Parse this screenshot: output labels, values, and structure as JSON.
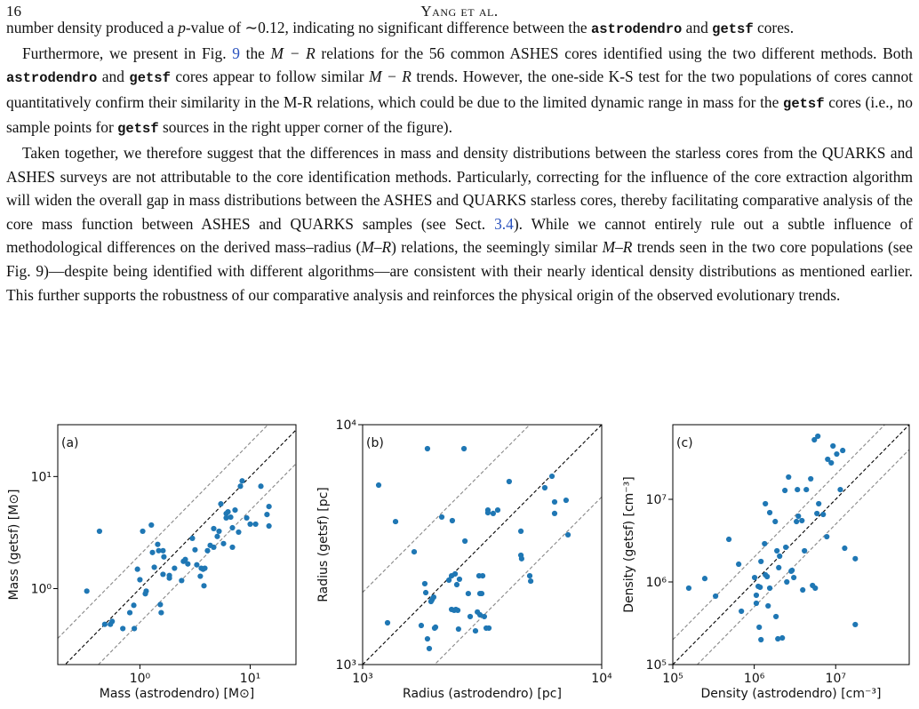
{
  "header": {
    "page": "16",
    "running_title": "Yang et al."
  },
  "paragraphs": [
    [
      "number density produced a ",
      "p",
      "-value of ∼0.12, indicating no significant difference between the ",
      "astrodendro",
      " and ",
      "getsf",
      " cores."
    ],
    [
      "Furthermore, we present in Fig. ",
      "9",
      " the ",
      "M − R",
      " relations for the 56 common ASHES cores identified using the two different methods. Both ",
      "astrodendro",
      " and ",
      "getsf",
      " cores appear to follow similar ",
      "M − R",
      " trends. However, the one-side K-S test for the two populations of cores cannot quantitatively confirm their similarity in the M-R relations, which could be due to the limited dynamic range in mass for the ",
      "getsf",
      " cores (i.e., no sample points for ",
      "getsf",
      " sources in the right upper corner of the figure)."
    ],
    [
      "Taken together, we therefore suggest that the differences in mass and density distributions between the starless cores from the QUARKS and ASHES surveys are not attributable to the core identification methods. Particularly, correcting for the influence of the core extraction algorithm will widen the overall gap in mass distributions between the ASHES and QUARKS starless cores, thereby facilitating comparative analysis of the core mass function between ASHES and QUARKS samples (see Sect. ",
      "3.4",
      "). While we cannot entirely rule out a subtle influence of methodological differences on the derived mass–radius (",
      "M–R",
      ") relations, the seemingly similar ",
      "M–R",
      " trends seen in the two core populations (see Fig. 9)—despite being identified with different algorithms—are consistent with their nearly identical density distributions as mentioned earlier.  This further supports the robustness of our comparative analysis and reinforces the physical origin of the observed evolutionary trends."
    ]
  ],
  "chart_data": [
    {
      "type": "scatter",
      "panel_label": "(a)",
      "xlabel": "Mass (astrodendro) [M⊙]",
      "ylabel": "Mass (getsf) [M⊙]",
      "xscale": "log",
      "yscale": "log",
      "color": "#1f77b4",
      "xlim": [
        0.18,
        26
      ],
      "ylim": [
        0.21,
        29
      ],
      "xticks": [
        {
          "value": 1,
          "label": "10⁰"
        },
        {
          "value": 10,
          "label": "10¹"
        }
      ],
      "yticks": [
        {
          "value": 1,
          "label": "10⁰"
        },
        {
          "value": 10,
          "label": "10¹"
        }
      ],
      "reference_lines": [
        {
          "ratio": 1,
          "color": "#000000"
        },
        {
          "ratio": 2,
          "color": "#888888"
        },
        {
          "ratio": 0.5,
          "color": "#888888"
        }
      ],
      "x": [
        0.33,
        0.43,
        0.48,
        0.54,
        0.56,
        0.7,
        0.81,
        0.89,
        0.88,
        1.0,
        0.95,
        1.06,
        1.12,
        1.14,
        1.27,
        1.3,
        1.35,
        1.45,
        1.48,
        1.53,
        1.56,
        1.62,
        1.65,
        1.62,
        1.85,
        1.85,
        2.06,
        2.39,
        2.48,
        2.58,
        2.72,
        2.99,
        3.16,
        3.28,
        3.53,
        3.6,
        3.74,
        3.81,
        3.88,
        4.1,
        4.34,
        4.67,
        4.67,
        5.03,
        5.22,
        5.42,
        5.73,
        6.06,
        6.06,
        6.29,
        6.65,
        6.9,
        6.9,
        7.29,
        7.85,
        8.15,
        8.46,
        9.29,
        10,
        11.2,
        12.5,
        14.2,
        14.8,
        14.8
      ],
      "values": [
        0.95,
        3.25,
        0.48,
        0.48,
        0.51,
        0.44,
        0.61,
        0.44,
        0.71,
        1.2,
        1.49,
        3.25,
        0.9,
        0.95,
        3.69,
        2.1,
        1.55,
        2.48,
        2.18,
        0.72,
        0.61,
        2.18,
        1.92,
        1.34,
        1.31,
        1.24,
        1.52,
        1.18,
        1.75,
        1.82,
        1.66,
        2.81,
        2.22,
        1.63,
        1.29,
        1.52,
        1.49,
        1.06,
        1.52,
        2.18,
        2.43,
        2.34,
        3.43,
        2.92,
        3.25,
        5.7,
        2.52,
        4.67,
        4.27,
        4.84,
        4.34,
        3.49,
        2.34,
        5.02,
        3.19,
        8.19,
        9.14,
        4.27,
        3.76,
        3.76,
        8.19,
        4.58,
        5.4,
        3.62
      ]
    },
    {
      "type": "scatter",
      "panel_label": "(b)",
      "xlabel": "Radius (astrodendro) [pc]",
      "ylabel": "Radius (getsf) [pc]",
      "xscale": "log",
      "yscale": "log",
      "color": "#1f77b4",
      "xlim": [
        1000,
        10000
      ],
      "ylim": [
        1000,
        10000
      ],
      "xticks": [
        {
          "value": 1000,
          "label": "10³"
        },
        {
          "value": 10000,
          "label": "10⁴"
        }
      ],
      "yticks": [
        {
          "value": 1000,
          "label": "10³"
        },
        {
          "value": 10000,
          "label": "10⁴"
        }
      ],
      "reference_lines": [
        {
          "ratio": 1,
          "color": "#000000"
        },
        {
          "ratio": 2,
          "color": "#888888"
        },
        {
          "ratio": 0.5,
          "color": "#888888"
        }
      ],
      "x": [
        1167,
        1271,
        1373,
        1643,
        1759,
        1820,
        1837,
        1867,
        1867,
        1900,
        1932,
        1950,
        1982,
        2000,
        2018,
        2143,
        2296,
        2355,
        2355,
        2372,
        2415,
        2437,
        2455,
        2477,
        2500,
        2518,
        2541,
        2655,
        2679,
        2767,
        2818,
        2965,
        3020,
        3069,
        3097,
        3097,
        3148,
        3177,
        3228,
        3289,
        3342,
        3342,
        3373,
        3516,
        3673,
        4102,
        4592,
        4592,
        4624,
        5000,
        5047,
        5781,
        6194,
        6353,
        6353,
        7096,
        7227
      ],
      "values": [
        5598,
        1493,
        3945,
        2951,
        1455,
        2173,
        1995,
        7943,
        1280,
        1166,
        1832,
        1862,
        1910,
        1419,
        1432,
        4121,
        2249,
        2344,
        1698,
        3981,
        1683,
        2387,
        1698,
        2154,
        1683,
        1406,
        2269,
        7943,
        3272,
        1977,
        1585,
        1382,
        1656,
        2344,
        1977,
        1612,
        1977,
        2344,
        1585,
        1419,
        4406,
        4295,
        1419,
        4266,
        4406,
        5794,
        3597,
        2856,
        2762,
        2344,
        2228,
        5458,
        6095,
        4764,
        4266,
        4842,
        3475
      ]
    },
    {
      "type": "scatter",
      "panel_label": "(c)",
      "xlabel": "Density (astrodendro) [cm⁻³]",
      "ylabel": "Density (getsf) [cm⁻³]",
      "xscale": "log",
      "yscale": "log",
      "color": "#1f77b4",
      "xlim": [
        100000.0,
        80000000.0
      ],
      "ylim": [
        100000.0,
        80000000.0
      ],
      "xticks": [
        {
          "value": 100000.0,
          "label": "10⁵"
        },
        {
          "value": 1000000.0,
          "label": "10⁶"
        },
        {
          "value": 10000000.0,
          "label": "10⁷"
        }
      ],
      "yticks": [
        {
          "value": 100000.0,
          "label": "10⁵"
        },
        {
          "value": 1000000.0,
          "label": "10⁶"
        },
        {
          "value": 10000000.0,
          "label": "10⁷"
        }
      ],
      "reference_lines": [
        {
          "ratio": 1,
          "color": "#000000"
        },
        {
          "ratio": 2,
          "color": "#888888"
        },
        {
          "ratio": 0.5,
          "color": "#888888"
        }
      ],
      "x": [
        157000.0,
        247000.0,
        335000.0,
        488000.0,
        644000.0,
        695000.0,
        1010000.0,
        1060000.0,
        1060000.0,
        1120000.0,
        1150000.0,
        1180000.0,
        1210000.0,
        1210000.0,
        1340000.0,
        1370000.0,
        1370000.0,
        1440000.0,
        1480000.0,
        1550000.0,
        1550000.0,
        1810000.0,
        1850000.0,
        1900000.0,
        1950000.0,
        2000000.0,
        2050000.0,
        2210000.0,
        2380000.0,
        2440000.0,
        2510000.0,
        2640000.0,
        2840000.0,
        2910000.0,
        3060000.0,
        3300000.0,
        3390000.0,
        3480000.0,
        3850000.0,
        3940000.0,
        4140000.0,
        4360000.0,
        4940000.0,
        5200000.0,
        5470000.0,
        5610000.0,
        5890000.0,
        6040000.0,
        6190000.0,
        7030000.0,
        7780000.0,
        7980000.0,
        8820000.0,
        9270000.0,
        10300000.0,
        11400000.0,
        12200000.0,
        12900000.0,
        17400000.0,
        17400000.0
      ],
      "values": [
        841000.0,
        1100000.0,
        673000.0,
        3280000.0,
        1640000.0,
        442000.0,
        1130000.0,
        690000.0,
        552000.0,
        884000.0,
        283000.0,
        862000.0,
        1770000.0,
        200000.0,
        2900000.0,
        8840000.0,
        1220000.0,
        1160000.0,
        513000.0,
        6900000.0,
        841000.0,
        5380000.0,
        381000.0,
        2380000.0,
        205000.0,
        1490000.0,
        2050000.0,
        210000.0,
        12800000.0,
        2630000.0,
        1000000.0,
        18600000.0,
        1350000.0,
        1380000.0,
        1130000.0,
        5380000.0,
        13100000.0,
        6250000.0,
        5520000.0,
        800000.0,
        2380000.0,
        13100000.0,
        17700000.0,
        906000.0,
        52500000.0,
        841000.0,
        6730000.0,
        58000000.0,
        8840000.0,
        6560000.0,
        3530000.0,
        30500000.0,
        27600000.0,
        44200000.0,
        35300000.0,
        13100000.0,
        39000000.0,
        2560000.0,
        1910000.0,
        305000.0
      ]
    }
  ]
}
